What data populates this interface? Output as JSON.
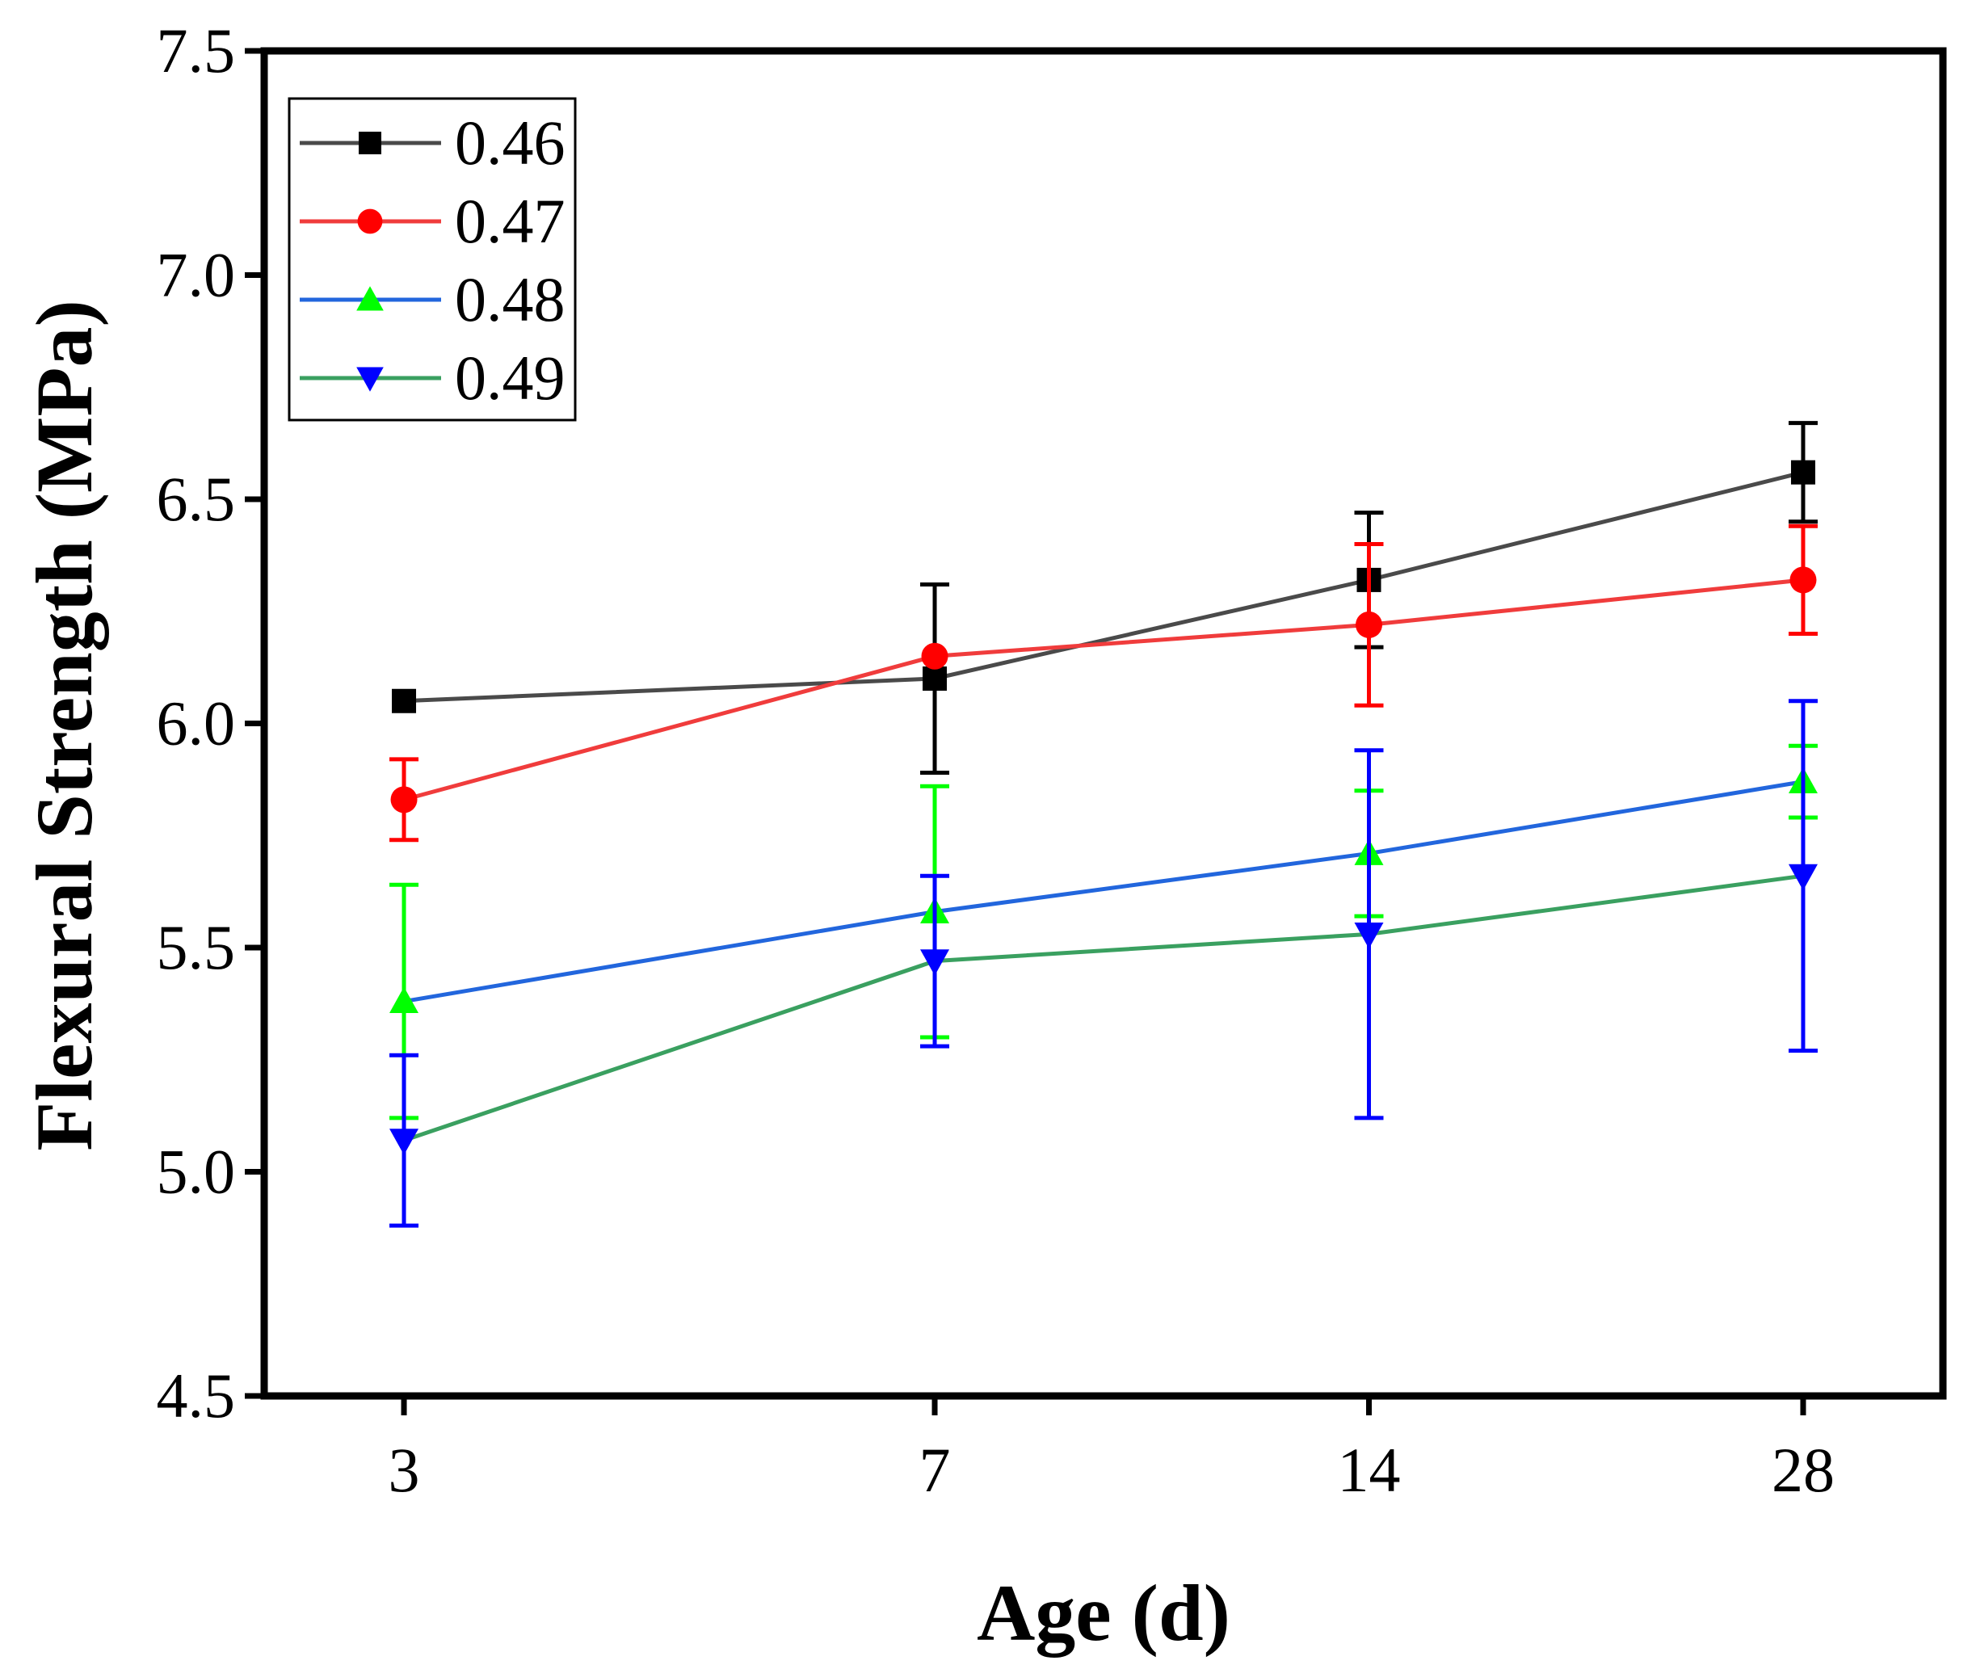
{
  "chart_data": {
    "type": "line",
    "xlabel": "Age (d)",
    "ylabel": "Flexural Strength (MPa)",
    "x": [
      3,
      7,
      14,
      28
    ],
    "x_tick_labels": [
      "3",
      "7",
      "14",
      "28"
    ],
    "x_scale": "log",
    "xlim": [
      2.4,
      35
    ],
    "ylim": [
      4.5,
      7.5
    ],
    "y_ticks": [
      4.5,
      5.0,
      5.5,
      6.0,
      6.5,
      7.0,
      7.5
    ],
    "y_tick_labels": [
      "4.5",
      "5.0",
      "5.5",
      "6.0",
      "6.5",
      "7.0",
      "7.5"
    ],
    "grid": false,
    "legend_position": "top-left",
    "series": [
      {
        "name": "0.46",
        "line_color": "#4a4a4a",
        "marker_color": "#000000",
        "error_color": "#000000",
        "marker": "square",
        "values": [
          6.05,
          6.1,
          6.32,
          6.56
        ],
        "errors": [
          0.0,
          0.21,
          0.15,
          0.11
        ]
      },
      {
        "name": "0.47",
        "line_color": "#f03c3c",
        "marker_color": "#ff0000",
        "error_color": "#ff0000",
        "marker": "circle",
        "values": [
          5.83,
          6.15,
          6.22,
          6.32
        ],
        "errors": [
          0.09,
          0.0,
          0.18,
          0.12
        ]
      },
      {
        "name": "0.48",
        "line_color": "#2266dd",
        "marker_color": "#00ff00",
        "error_color": "#00ff00",
        "marker": "triangle-up",
        "values": [
          5.38,
          5.58,
          5.71,
          5.87
        ],
        "errors": [
          0.26,
          0.28,
          0.14,
          0.08
        ]
      },
      {
        "name": "0.49",
        "line_color": "#3aa060",
        "marker_color": "#0000ff",
        "error_color": "#0000ff",
        "marker": "triangle-down",
        "values": [
          5.07,
          5.47,
          5.53,
          5.66
        ],
        "errors": [
          0.19,
          0.19,
          0.41,
          0.39
        ]
      }
    ]
  }
}
